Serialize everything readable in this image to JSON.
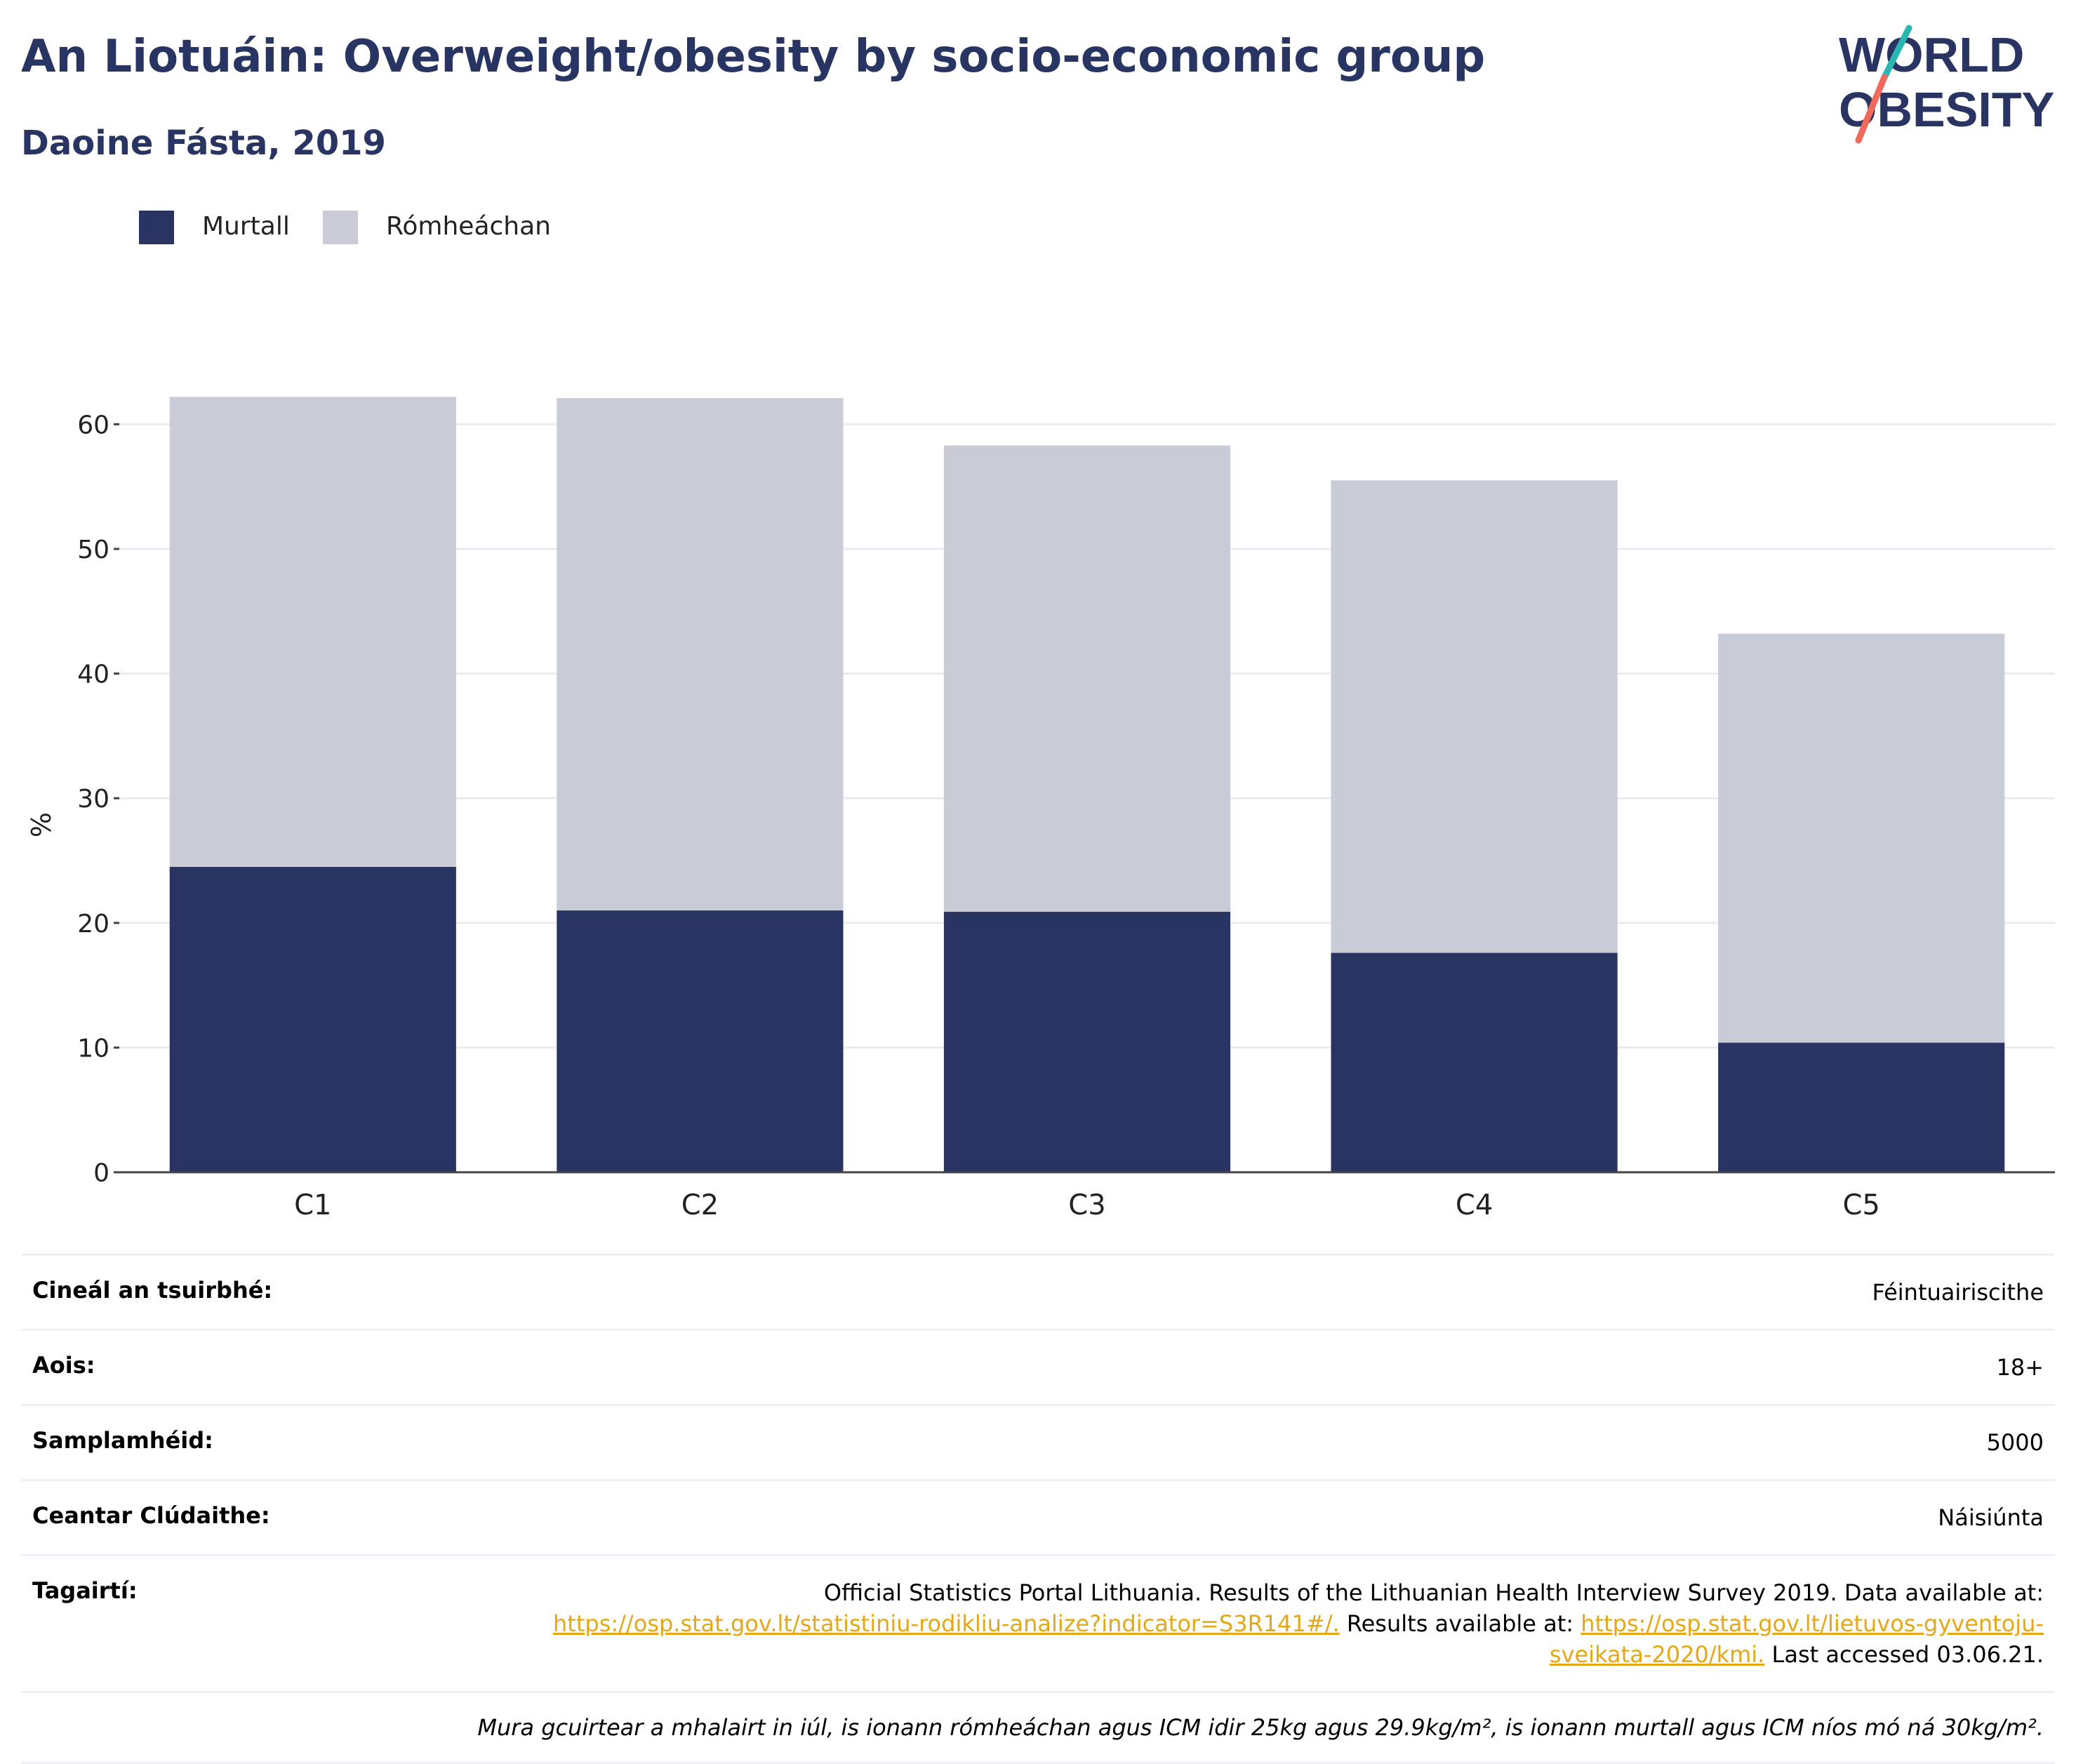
{
  "header": {
    "title": "An Liotuáin: Overweight/obesity by socio-economic group",
    "subtitle": "Daoine Fásta, 2019"
  },
  "logo": {
    "line1": "WORLD",
    "line2": "OBESITY"
  },
  "legend": {
    "items": [
      "Murtall",
      "Rómheáchan"
    ]
  },
  "colors": {
    "murtall": "#293462",
    "romheachan": "#c9cbd7",
    "accent_teal": "#2ab7b3",
    "accent_coral": "#ef6a5a",
    "link": "#e6a717"
  },
  "chart_data": {
    "type": "bar",
    "stacked": true,
    "title": "An Liotuáin: Overweight/obesity by socio-economic group",
    "subtitle": "Daoine Fásta, 2019",
    "categories": [
      "C1",
      "C2",
      "C3",
      "C4",
      "C5"
    ],
    "series": [
      {
        "name": "Murtall",
        "values": [
          24.5,
          21.0,
          20.9,
          17.6,
          10.4
        ]
      },
      {
        "name": "Rómheáchan",
        "values": [
          37.7,
          41.1,
          37.4,
          37.9,
          32.8
        ]
      }
    ],
    "xlabel": "",
    "ylabel": "%",
    "ylim": [
      0,
      62.5
    ],
    "yticks": [
      0,
      10,
      20,
      30,
      40,
      50,
      60
    ],
    "grid": true,
    "legend_position": "top-left"
  },
  "info": {
    "rows": [
      {
        "key": "Cineál an tsuirbhé:",
        "value": "Féintuairiscithe"
      },
      {
        "key": "Aois:",
        "value": "18+"
      },
      {
        "key": "Samplamhéid:",
        "value": "5000"
      },
      {
        "key": "Ceantar Clúdaithe:",
        "value": "Náisiúnta"
      }
    ],
    "ref_key": "Tagairtí:",
    "ref_text1": "Official Statistics Portal Lithuania. Results of the Lithuanian Health Interview Survey 2019. Data available at:",
    "ref_link1": "https://osp.stat.gov.lt/statistiniu-rodikliu-analize?indicator=S3R141#/.",
    "ref_text2": " Results available at: ",
    "ref_link2": "https://osp.stat.gov.lt/lietuvos-gyventoju-sveikata-2020/kmi.",
    "ref_text3": " Last accessed 03.06.21.",
    "note": "Mura gcuirtear a mhalairt in iúl, is ionann rómheáchan agus ICM idir 25kg agus 29.9kg/m², is ionann murtall agus ICM níos mó ná 30kg/m²."
  }
}
